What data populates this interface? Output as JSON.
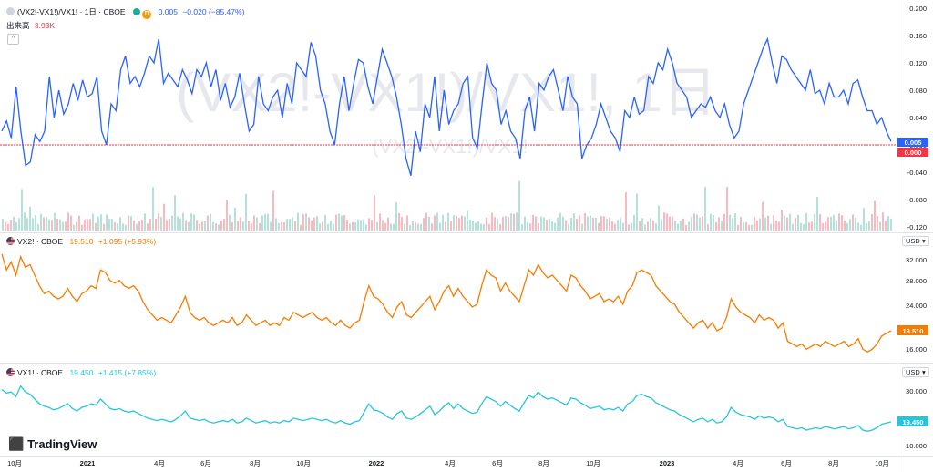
{
  "panes": [
    {
      "symbol": "(VX2!-VX1!)/VX1! · 1日 · CBOE",
      "value": "0.005",
      "change": "−0.020 (−85.47%)",
      "volume_label": "出来高",
      "volume_value": "3.93K",
      "watermark": "(VX2!-VX1!)/VX1!, 1日",
      "watermark_sub": "(VX2!-VX1!)/VX1!",
      "last_badge": "0.005",
      "ref_badge": "0.000",
      "line_color": "#2962ff"
    },
    {
      "symbol": "VX2! · CBOE",
      "value": "19.510",
      "change": "+1.095 (+5.93%)",
      "currency": "USD",
      "last_badge": "19.510",
      "line_color": "#f57c00"
    },
    {
      "symbol": "VX1! · CBOE",
      "value": "19.450",
      "change": "+1.415 (+7.85%)",
      "currency": "USD",
      "last_badge": "19.450",
      "line_color": "#26c6da"
    }
  ],
  "x_axis_labels": [
    "10月",
    "2021",
    "4月",
    "6月",
    "8月",
    "10月",
    "2022",
    "4月",
    "6月",
    "8月",
    "10月",
    "2023",
    "4月",
    "6月",
    "8月",
    "10月"
  ],
  "brand": "TradingView",
  "collapse_symbol": "^",
  "chart_data": [
    {
      "type": "line",
      "title": "(VX2!-VX1!)/VX1! · 1日 · CBOE",
      "yticks": [
        "0.200",
        "0.160",
        "0.120",
        "0.080",
        "0.040",
        "0.000",
        "-0.040",
        "-0.080",
        "-0.120"
      ],
      "ylim": [
        -0.12,
        0.2
      ],
      "reference_line": 0.0,
      "series": [
        {
          "values": [
            0.02,
            0.035,
            0.01,
            0.085,
            0.02,
            -0.03,
            -0.025,
            0.015,
            0.005,
            0.02,
            0.1,
            0.04,
            0.08,
            0.045,
            0.06,
            0.09,
            0.065,
            0.095,
            0.07,
            0.075,
            0.1,
            0.02,
            0.0,
            0.06,
            0.05,
            0.11,
            0.13,
            0.09,
            0.1,
            0.085,
            0.105,
            0.13,
            0.12,
            0.155,
            0.09,
            0.105,
            0.095,
            0.085,
            0.11,
            0.095,
            0.075,
            0.11,
            0.1,
            0.12,
            0.085,
            0.11,
            0.065,
            0.09,
            0.055,
            0.07,
            0.105,
            0.06,
            0.02,
            0.03,
            0.1,
            0.06,
            0.05,
            0.07,
            0.08,
            0.04,
            0.09,
            0.06,
            0.12,
            0.11,
            0.1,
            0.15,
            0.13,
            0.08,
            0.06,
            0.02,
            0.0,
            0.06,
            0.1,
            0.05,
            0.09,
            0.125,
            0.12,
            0.085,
            0.06,
            0.1,
            0.14,
            0.12,
            0.1,
            0.07,
            0.03,
            -0.02,
            -0.045,
            0.02,
            -0.01,
            0.06,
            0.04,
            0.1,
            0.02,
            0.08,
            0.03,
            0.05,
            0.06,
            0.09,
            0.1,
            0.01,
            -0.005,
            0.06,
            0.12,
            0.09,
            0.08,
            0.03,
            0.05,
            0.02,
            0.01,
            -0.02,
            0.05,
            0.07,
            0.02,
            0.09,
            0.08,
            0.1,
            0.11,
            0.08,
            0.05,
            0.1,
            0.07,
            0.06,
            -0.02,
            0.0,
            0.01,
            0.03,
            0.06,
            0.04,
            0.02,
            0.01,
            -0.01,
            0.05,
            0.04,
            0.07,
            0.045,
            0.05,
            0.1,
            0.09,
            0.12,
            0.11,
            0.14,
            0.12,
            0.09,
            0.08,
            0.07,
            0.04,
            0.05,
            0.06,
            0.055,
            0.07,
            0.05,
            0.04,
            0.06,
            0.03,
            0.01,
            0.02,
            0.06,
            0.08,
            0.1,
            0.12,
            0.14,
            0.155,
            0.12,
            0.09,
            0.13,
            0.125,
            0.11,
            0.1,
            0.09,
            0.08,
            0.11,
            0.075,
            0.08,
            0.06,
            0.09,
            0.07,
            0.07,
            0.08,
            0.06,
            0.09,
            0.095,
            0.07,
            0.05,
            0.05,
            0.03,
            0.04,
            0.02,
            0.005
          ]
        }
      ]
    },
    {
      "type": "line",
      "title": "VX2! · CBOE",
      "yticks": [
        "32.000",
        "28.000",
        "24.000",
        "20.000",
        "16.000"
      ],
      "ylim": [
        14.5,
        35
      ],
      "series": [
        {
          "values": [
            34,
            31,
            32.5,
            30,
            33.5,
            31.5,
            32,
            30,
            28,
            26.5,
            27,
            26,
            25.5,
            26,
            27.5,
            26,
            25,
            26.5,
            27,
            28,
            27.5,
            31,
            30.5,
            29,
            28.5,
            29,
            28,
            27.5,
            28,
            27,
            25,
            23.5,
            22.5,
            21.5,
            22,
            21.5,
            21,
            22.5,
            24,
            26,
            23,
            22,
            21.5,
            22,
            21,
            20.5,
            21,
            21.5,
            21,
            22,
            20.5,
            21,
            22.5,
            21.5,
            20.5,
            21,
            21.5,
            20.5,
            21,
            20.5,
            22,
            21.5,
            23,
            22.5,
            22,
            22.5,
            23,
            22,
            21.5,
            22,
            21,
            20.5,
            21.5,
            20.5,
            20,
            21,
            21.5,
            25,
            28,
            26,
            25.5,
            24.5,
            23,
            22,
            24,
            25,
            22.5,
            22,
            23,
            24,
            25,
            26,
            23.5,
            25,
            27,
            28,
            26,
            27.5,
            26,
            25,
            24,
            24.5,
            28,
            31,
            30,
            29.5,
            27,
            28.5,
            27,
            26,
            25,
            28,
            31,
            30,
            32,
            30.5,
            29.5,
            30,
            29,
            28,
            27,
            30,
            29.5,
            28,
            27,
            25.5,
            26,
            26.5,
            25,
            25.5,
            25,
            26,
            24.5,
            27,
            28,
            30.5,
            31,
            30.5,
            30,
            28,
            27,
            26,
            25,
            24.5,
            23,
            22,
            21,
            20,
            21,
            21.5,
            20,
            21,
            19.5,
            20,
            22,
            25.5,
            24,
            23,
            22.5,
            22,
            21,
            22.5,
            21.5,
            22,
            21.5,
            20,
            21,
            17.5,
            17,
            16.5,
            17,
            16,
            16.5,
            17,
            16.5,
            17.5,
            17,
            16.5,
            17,
            17.5,
            16.5,
            17,
            18,
            16,
            15.5,
            16,
            17,
            18.5,
            19,
            19.5
          ]
        }
      ]
    },
    {
      "type": "line",
      "title": "VX1! · CBOE",
      "yticks": [
        "30.000",
        "20.000",
        "10.000"
      ],
      "ylim": [
        8,
        37
      ],
      "series": [
        {
          "values": [
            33,
            31.5,
            32,
            30,
            34.5,
            32,
            31,
            29,
            27,
            26,
            25.5,
            24.5,
            25,
            26,
            27,
            25,
            24,
            25.5,
            26,
            27,
            26.5,
            29,
            27,
            25,
            24.5,
            25,
            24,
            23.5,
            24,
            23,
            22,
            21,
            20.5,
            20,
            20.5,
            20,
            19.5,
            20.5,
            22,
            24,
            21,
            20.5,
            20,
            20.5,
            19.5,
            19,
            19.5,
            20,
            19.5,
            20.5,
            19,
            19.5,
            21,
            20,
            19,
            19.5,
            20,
            19,
            19.5,
            19,
            20,
            19.5,
            21,
            20.5,
            20,
            20.5,
            21,
            20.5,
            20,
            20.5,
            19.5,
            19,
            20,
            19,
            18.5,
            19.5,
            20,
            23.5,
            27,
            24.5,
            24,
            23,
            21.5,
            20.5,
            23,
            24,
            21,
            20.5,
            21.5,
            23,
            24.5,
            26,
            22.5,
            24,
            26,
            27.5,
            25,
            27,
            25,
            24,
            23,
            23.5,
            27,
            30,
            29,
            28,
            26,
            28,
            26.5,
            25,
            24,
            27.5,
            30.5,
            29.5,
            32,
            30,
            29,
            29.5,
            28.5,
            27.5,
            26.5,
            29.5,
            29,
            27.5,
            26.5,
            25,
            25.5,
            26,
            24.5,
            25,
            24.5,
            25.5,
            24,
            27,
            28,
            30.5,
            31,
            30,
            29.5,
            27.5,
            26.5,
            25.5,
            24.5,
            24,
            22.5,
            21.5,
            20.5,
            19.5,
            20.5,
            21,
            19.5,
            20.5,
            19,
            19.5,
            21.5,
            25.5,
            23.5,
            22.5,
            22,
            21.5,
            20.5,
            22,
            21,
            21.5,
            21,
            19.5,
            20.5,
            17.5,
            17,
            16.5,
            17,
            16,
            16.5,
            17,
            16.5,
            17.5,
            17,
            16.5,
            17,
            17.5,
            16.5,
            17,
            18,
            16,
            15.5,
            16,
            17,
            18.5,
            19,
            19.45
          ]
        }
      ]
    }
  ]
}
